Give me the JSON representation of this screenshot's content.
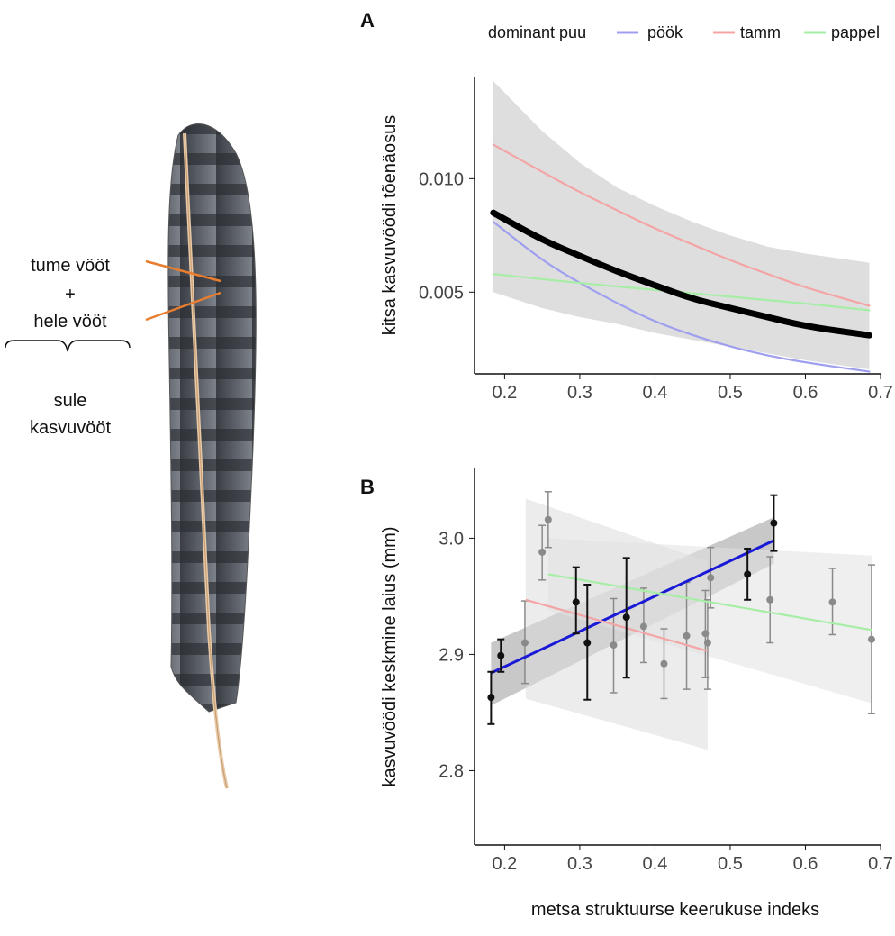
{
  "feather": {
    "label_dark": "tume vööt",
    "label_plus": "+",
    "label_light": "hele vööt",
    "label_growth_1": "sule",
    "label_growth_2": "kasvuvööt"
  },
  "legend": {
    "title": "dominant puu",
    "items": [
      {
        "name": "pöök",
        "color": "#9f9fef"
      },
      {
        "name": "tamm",
        "color": "#f4a4a4"
      },
      {
        "name": "pappel",
        "color": "#a6eea6"
      }
    ]
  },
  "shared_xlabel": "metsa struktuurse keerukuse indeks",
  "chart_data": [
    {
      "panel": "A",
      "type": "line",
      "ylabel": "kitsa kasvuvöödi tõenäosus",
      "xlim": [
        0.16,
        0.7
      ],
      "ylim": [
        0.0014,
        0.0145
      ],
      "xticks": [
        "0.2",
        "0.3",
        "0.4",
        "0.5",
        "0.6",
        "0.7"
      ],
      "yticks": [
        "0.005",
        "0.010"
      ],
      "series": [
        {
          "name": "pöök",
          "color": "#9f9fef",
          "x": [
            0.185,
            0.25,
            0.3,
            0.35,
            0.4,
            0.45,
            0.5,
            0.55,
            0.6,
            0.685
          ],
          "y": [
            0.0081,
            0.0064,
            0.0054,
            0.0045,
            0.0037,
            0.0031,
            0.0026,
            0.0022,
            0.0019,
            0.0015
          ]
        },
        {
          "name": "tamm",
          "color": "#f4a4a4",
          "x": [
            0.185,
            0.25,
            0.3,
            0.35,
            0.4,
            0.45,
            0.5,
            0.55,
            0.6,
            0.685
          ],
          "y": [
            0.0115,
            0.0103,
            0.0094,
            0.0086,
            0.0078,
            0.0071,
            0.0064,
            0.0058,
            0.0052,
            0.0044
          ]
        },
        {
          "name": "pappel",
          "color": "#a6eea6",
          "x": [
            0.185,
            0.3,
            0.4,
            0.5,
            0.6,
            0.685
          ],
          "y": [
            0.0058,
            0.0054,
            0.0051,
            0.0048,
            0.0045,
            0.0042
          ]
        },
        {
          "name": "",
          "color": "#000000",
          "x": [
            0.185,
            0.25,
            0.3,
            0.35,
            0.4,
            0.45,
            0.5,
            0.55,
            0.6,
            0.685
          ],
          "y": [
            0.0085,
            0.0073,
            0.0066,
            0.0059,
            0.0053,
            0.0047,
            0.0043,
            0.0039,
            0.0035,
            0.0031
          ]
        }
      ],
      "confidence_band": {
        "x": [
          0.185,
          0.25,
          0.3,
          0.35,
          0.4,
          0.45,
          0.5,
          0.55,
          0.6,
          0.685
        ],
        "upper": [
          0.0143,
          0.0121,
          0.0107,
          0.0096,
          0.0088,
          0.0081,
          0.0075,
          0.007,
          0.0067,
          0.0063
        ],
        "lower": [
          0.005,
          0.0043,
          0.0039,
          0.0036,
          0.0032,
          0.0029,
          0.0026,
          0.0023,
          0.002,
          0.0016
        ]
      }
    },
    {
      "panel": "B",
      "type": "scatter",
      "ylabel": "kasvuvöödi keskmine laius (mm)",
      "xlim": [
        0.16,
        0.7
      ],
      "ylim": [
        2.736,
        3.06
      ],
      "xticks": [
        "0.2",
        "0.3",
        "0.4",
        "0.5",
        "0.6",
        "0.7"
      ],
      "yticks": [
        "2.8",
        "2.9",
        "3.0"
      ],
      "points_black": [
        {
          "x": 0.182,
          "y": 2.863,
          "lo": 2.84,
          "hi": 2.885
        },
        {
          "x": 0.195,
          "y": 2.899,
          "lo": 2.885,
          "hi": 2.913
        },
        {
          "x": 0.295,
          "y": 2.945,
          "lo": 2.918,
          "hi": 2.975
        },
        {
          "x": 0.31,
          "y": 2.91,
          "lo": 2.861,
          "hi": 2.96
        },
        {
          "x": 0.362,
          "y": 2.932,
          "lo": 2.88,
          "hi": 2.983
        },
        {
          "x": 0.523,
          "y": 2.969,
          "lo": 2.947,
          "hi": 2.991
        },
        {
          "x": 0.558,
          "y": 3.013,
          "lo": 2.989,
          "hi": 3.037
        }
      ],
      "points_grey": [
        {
          "x": 0.227,
          "y": 2.91,
          "lo": 2.875,
          "hi": 2.946
        },
        {
          "x": 0.25,
          "y": 2.988,
          "lo": 2.964,
          "hi": 3.011
        },
        {
          "x": 0.258,
          "y": 3.016,
          "lo": 2.992,
          "hi": 3.04
        },
        {
          "x": 0.345,
          "y": 2.908,
          "lo": 2.867,
          "hi": 2.948
        },
        {
          "x": 0.385,
          "y": 2.924,
          "lo": 2.893,
          "hi": 2.957
        },
        {
          "x": 0.412,
          "y": 2.892,
          "lo": 2.862,
          "hi": 2.922
        },
        {
          "x": 0.442,
          "y": 2.916,
          "lo": 2.87,
          "hi": 2.962
        },
        {
          "x": 0.467,
          "y": 2.918,
          "lo": 2.88,
          "hi": 2.955
        },
        {
          "x": 0.47,
          "y": 2.91,
          "lo": 2.87,
          "hi": 2.947
        },
        {
          "x": 0.474,
          "y": 2.966,
          "lo": 2.94,
          "hi": 2.992
        },
        {
          "x": 0.553,
          "y": 2.947,
          "lo": 2.91,
          "hi": 2.984
        },
        {
          "x": 0.636,
          "y": 2.945,
          "lo": 2.917,
          "hi": 2.974
        },
        {
          "x": 0.688,
          "y": 2.913,
          "lo": 2.849,
          "hi": 2.977
        }
      ],
      "fit_lines": [
        {
          "name": "",
          "color": "#1a1ad6",
          "x": [
            0.182,
            0.558
          ],
          "y": [
            2.884,
            2.998
          ]
        },
        {
          "name": "tamm",
          "color": "#f4a4a4",
          "x": [
            0.228,
            0.47
          ],
          "y": [
            2.947,
            2.903
          ]
        },
        {
          "name": "pappel",
          "color": "#a6eea6",
          "x": [
            0.258,
            0.688
          ],
          "y": [
            2.969,
            2.921
          ]
        }
      ],
      "bands": [
        {
          "x": [
            0.182,
            0.558
          ],
          "upper": [
            2.91,
            3.018
          ],
          "lower": [
            2.856,
            2.978
          ]
        },
        {
          "x": [
            0.228,
            0.47
          ],
          "upper": [
            3.034,
            2.98
          ],
          "lower": [
            2.862,
            2.818
          ]
        },
        {
          "x": [
            0.258,
            0.688
          ],
          "upper": [
            3.0,
            2.985
          ],
          "lower": [
            2.938,
            2.858
          ]
        }
      ]
    }
  ]
}
